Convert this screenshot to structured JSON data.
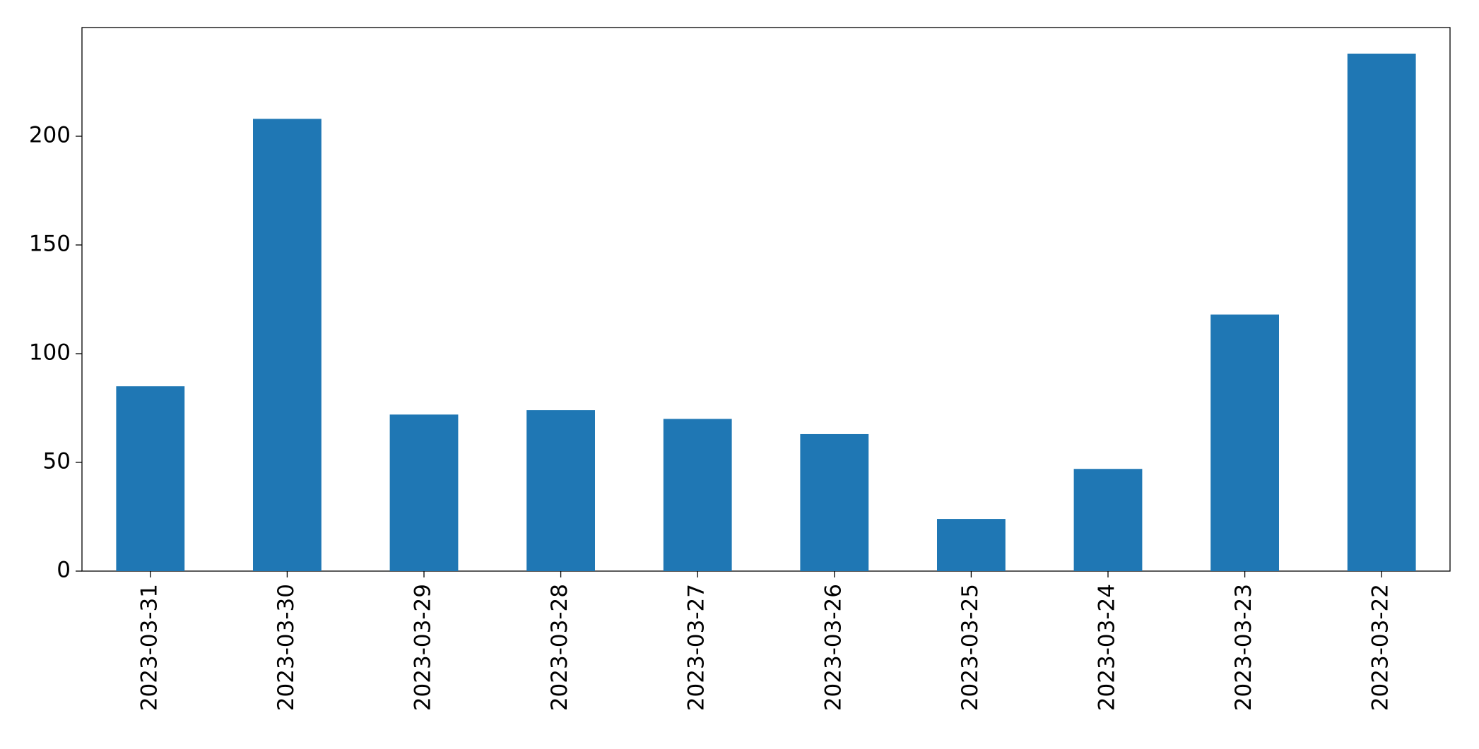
{
  "chart_data": {
    "type": "bar",
    "categories": [
      "2023-03-31",
      "2023-03-30",
      "2023-03-29",
      "2023-03-28",
      "2023-03-27",
      "2023-03-26",
      "2023-03-25",
      "2023-03-24",
      "2023-03-23",
      "2023-03-22"
    ],
    "values": [
      85,
      208,
      72,
      74,
      70,
      63,
      24,
      47,
      118,
      238
    ],
    "color": "#1f77b4",
    "ylim": [
      0,
      250
    ],
    "yticks": [
      0,
      50,
      100,
      150,
      200
    ],
    "grid": false
  }
}
